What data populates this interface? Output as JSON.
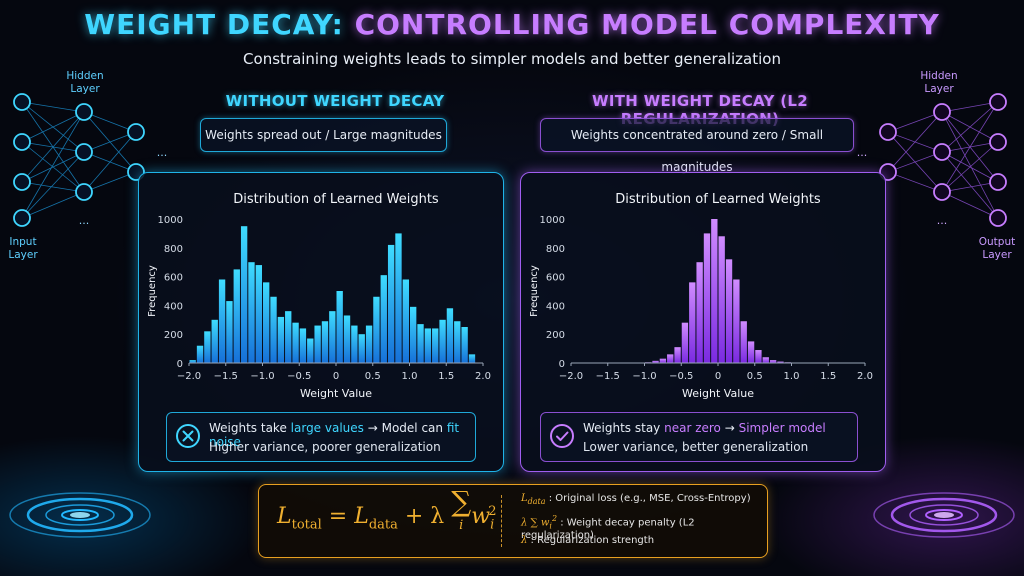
{
  "header": {
    "title_part1": "WEIGHT DECAY:",
    "title_part2": "CONTROLLING MODEL COMPLEXITY",
    "subtitle": "Constraining weights leads to simpler models and better generalization"
  },
  "left_network": {
    "hidden_label_1": "Hidden",
    "hidden_label_2": "Layer",
    "input_label_1": "Input",
    "input_label_2": "Layer",
    "ellipsis": "..."
  },
  "right_network": {
    "hidden_label_1": "Hidden",
    "hidden_label_2": "Layer",
    "output_label_1": "Output",
    "output_label_2": "Layer",
    "ellipsis": "..."
  },
  "left_section": {
    "title": "WITHOUT WEIGHT DECAY",
    "pill": "Weights spread out / Large magnitudes",
    "note_pre": "Weights take ",
    "note_hl1": "large values",
    "note_mid": " → Model can ",
    "note_hl2": "fit noise",
    "note_line2": "Higher variance, poorer generalization"
  },
  "right_section": {
    "title": "WITH WEIGHT DECAY (L2 REGULARIZATION)",
    "pill": "Weights concentrated around zero / Small magnitudes",
    "note_pre": "Weights stay ",
    "note_hl1": "near zero",
    "note_mid": " → ",
    "note_hl2": "Simpler model",
    "note_line2": "Lower variance, better generalization"
  },
  "colors": {
    "left_accent": "#3fd6ff",
    "right_accent": "#c77dff",
    "formula_accent": "#f0b030"
  },
  "chart_data": [
    {
      "type": "bar",
      "title": "Distribution of Learned Weights",
      "xlabel": "Weight Value",
      "ylabel": "Frequency",
      "xlim": [
        -2.0,
        2.0
      ],
      "ylim": [
        0,
        1000
      ],
      "xticks": [
        "−2.0",
        "−1.5",
        "−1.0",
        "−0.5",
        "0",
        "0.5",
        "1.0",
        "1.5",
        "2.0"
      ],
      "yticks": [
        "0",
        "200",
        "400",
        "600",
        "800",
        "1000"
      ],
      "bin_centers": [
        -1.95,
        -1.85,
        -1.75,
        -1.65,
        -1.55,
        -1.45,
        -1.35,
        -1.25,
        -1.15,
        -1.05,
        -0.95,
        -0.85,
        -0.75,
        -0.65,
        -0.55,
        -0.45,
        -0.35,
        -0.25,
        -0.15,
        -0.05,
        0.05,
        0.15,
        0.25,
        0.35,
        0.45,
        0.55,
        0.65,
        0.75,
        0.85,
        0.95,
        1.05,
        1.15,
        1.25,
        1.35,
        1.45,
        1.55,
        1.65,
        1.75,
        1.85,
        1.95
      ],
      "values": [
        20,
        120,
        220,
        300,
        580,
        430,
        650,
        950,
        700,
        680,
        560,
        460,
        320,
        360,
        280,
        240,
        170,
        260,
        290,
        360,
        500,
        330,
        260,
        200,
        260,
        460,
        610,
        820,
        900,
        580,
        390,
        270,
        240,
        240,
        300,
        380,
        290,
        250,
        60,
        0
      ],
      "grid": false
    },
    {
      "type": "bar",
      "title": "Distribution of Learned Weights",
      "xlabel": "Weight Value",
      "ylabel": "Frequency",
      "xlim": [
        -2.0,
        2.0
      ],
      "ylim": [
        0,
        1000
      ],
      "xticks": [
        "−2.0",
        "−1.5",
        "−1.0",
        "−0.5",
        "0",
        "0.5",
        "1.0",
        "1.5",
        "2.0"
      ],
      "yticks": [
        "0",
        "200",
        "400",
        "600",
        "800",
        "1000"
      ],
      "bin_centers": [
        -0.95,
        -0.85,
        -0.75,
        -0.65,
        -0.55,
        -0.45,
        -0.35,
        -0.25,
        -0.15,
        -0.05,
        0.05,
        0.15,
        0.25,
        0.35,
        0.45,
        0.55,
        0.65,
        0.75,
        0.85,
        0.95
      ],
      "values": [
        5,
        15,
        30,
        60,
        110,
        280,
        560,
        700,
        900,
        1000,
        880,
        720,
        580,
        290,
        150,
        90,
        40,
        20,
        10,
        5
      ],
      "grid": false
    }
  ],
  "formula": {
    "lhs": "L",
    "lhs_sub": "total",
    "eq": " = ",
    "l": "L",
    "l_sub": "data",
    "plus": " + λ",
    "sum": "∑",
    "sum_sub": "i",
    "w": "w",
    "w_sub": "i",
    "w_sup": "2",
    "legend_data_sym": "L",
    "legend_data_sub": "data",
    "legend_data_text": " : Original loss (e.g., MSE, Cross-Entropy)",
    "legend_penalty_sym": "λ ∑ w",
    "legend_penalty_sub": "i",
    "legend_penalty_sup": "2",
    "legend_penalty_text": " : Weight decay penalty (L2 regularization)",
    "legend_lambda_sym": "λ",
    "legend_lambda_text": " : Regularization strength"
  }
}
